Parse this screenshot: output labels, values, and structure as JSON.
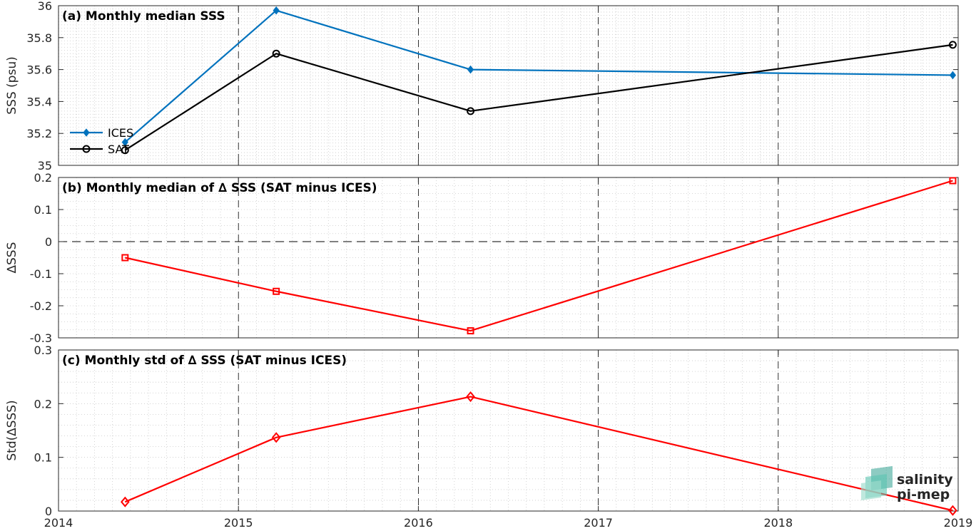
{
  "chart_data": [
    {
      "type": "line",
      "title": "(a) Monthly median SSS",
      "ylabel": "SSS (psu)",
      "xlim": [
        2014,
        2019
      ],
      "ylim": [
        35,
        36
      ],
      "yticks": [
        "35",
        "35.2",
        "35.4",
        "35.6",
        "35.8",
        "36"
      ],
      "grid": "dotted minor grid, dashed vertical yearly lines",
      "legend": "bottom-left",
      "series": [
        {
          "name": "ICES",
          "color": "#0072BD",
          "marker": "filled-diamond",
          "x": [
            2014.37,
            2015.21,
            2016.29,
            2018.97
          ],
          "y": [
            35.145,
            35.97,
            35.6,
            35.565
          ]
        },
        {
          "name": "SAT",
          "color": "#000000",
          "marker": "open-circle",
          "x": [
            2014.37,
            2015.21,
            2016.29,
            2018.97
          ],
          "y": [
            35.095,
            35.7,
            35.34,
            35.755
          ]
        }
      ]
    },
    {
      "type": "line",
      "title": "(b) Monthly median of ∆ SSS (SAT minus ICES)",
      "ylabel": "∆SSS",
      "xlim": [
        2014,
        2019
      ],
      "ylim": [
        -0.3,
        0.2
      ],
      "yticks": [
        "-0.3",
        "-0.2",
        "-0.1",
        "0",
        "0.1",
        "0.2"
      ],
      "reference_line": 0,
      "series": [
        {
          "name": "",
          "color": "#FF0000",
          "marker": "open-square",
          "x": [
            2014.37,
            2015.21,
            2016.29,
            2018.97
          ],
          "y": [
            -0.05,
            -0.155,
            -0.278,
            0.19
          ]
        }
      ]
    },
    {
      "type": "line",
      "title": "(c) Monthly std of ∆ SSS (SAT minus ICES)",
      "ylabel": "Std(∆SSS)",
      "xlim": [
        2014,
        2019
      ],
      "ylim": [
        0,
        0.3
      ],
      "yticks": [
        "0",
        "0.1",
        "0.2",
        "0.3"
      ],
      "xticks": [
        "2014",
        "2015",
        "2016",
        "2017",
        "2018",
        "2019"
      ],
      "series": [
        {
          "name": "",
          "color": "#FF0000",
          "marker": "open-diamond",
          "x": [
            2014.37,
            2015.21,
            2016.29,
            2018.97
          ],
          "y": [
            0.017,
            0.137,
            0.213,
            0.001
          ]
        }
      ]
    }
  ],
  "logo": {
    "line1": "salinity",
    "line2": "pi-mep",
    "color": "#1a9a8a"
  }
}
